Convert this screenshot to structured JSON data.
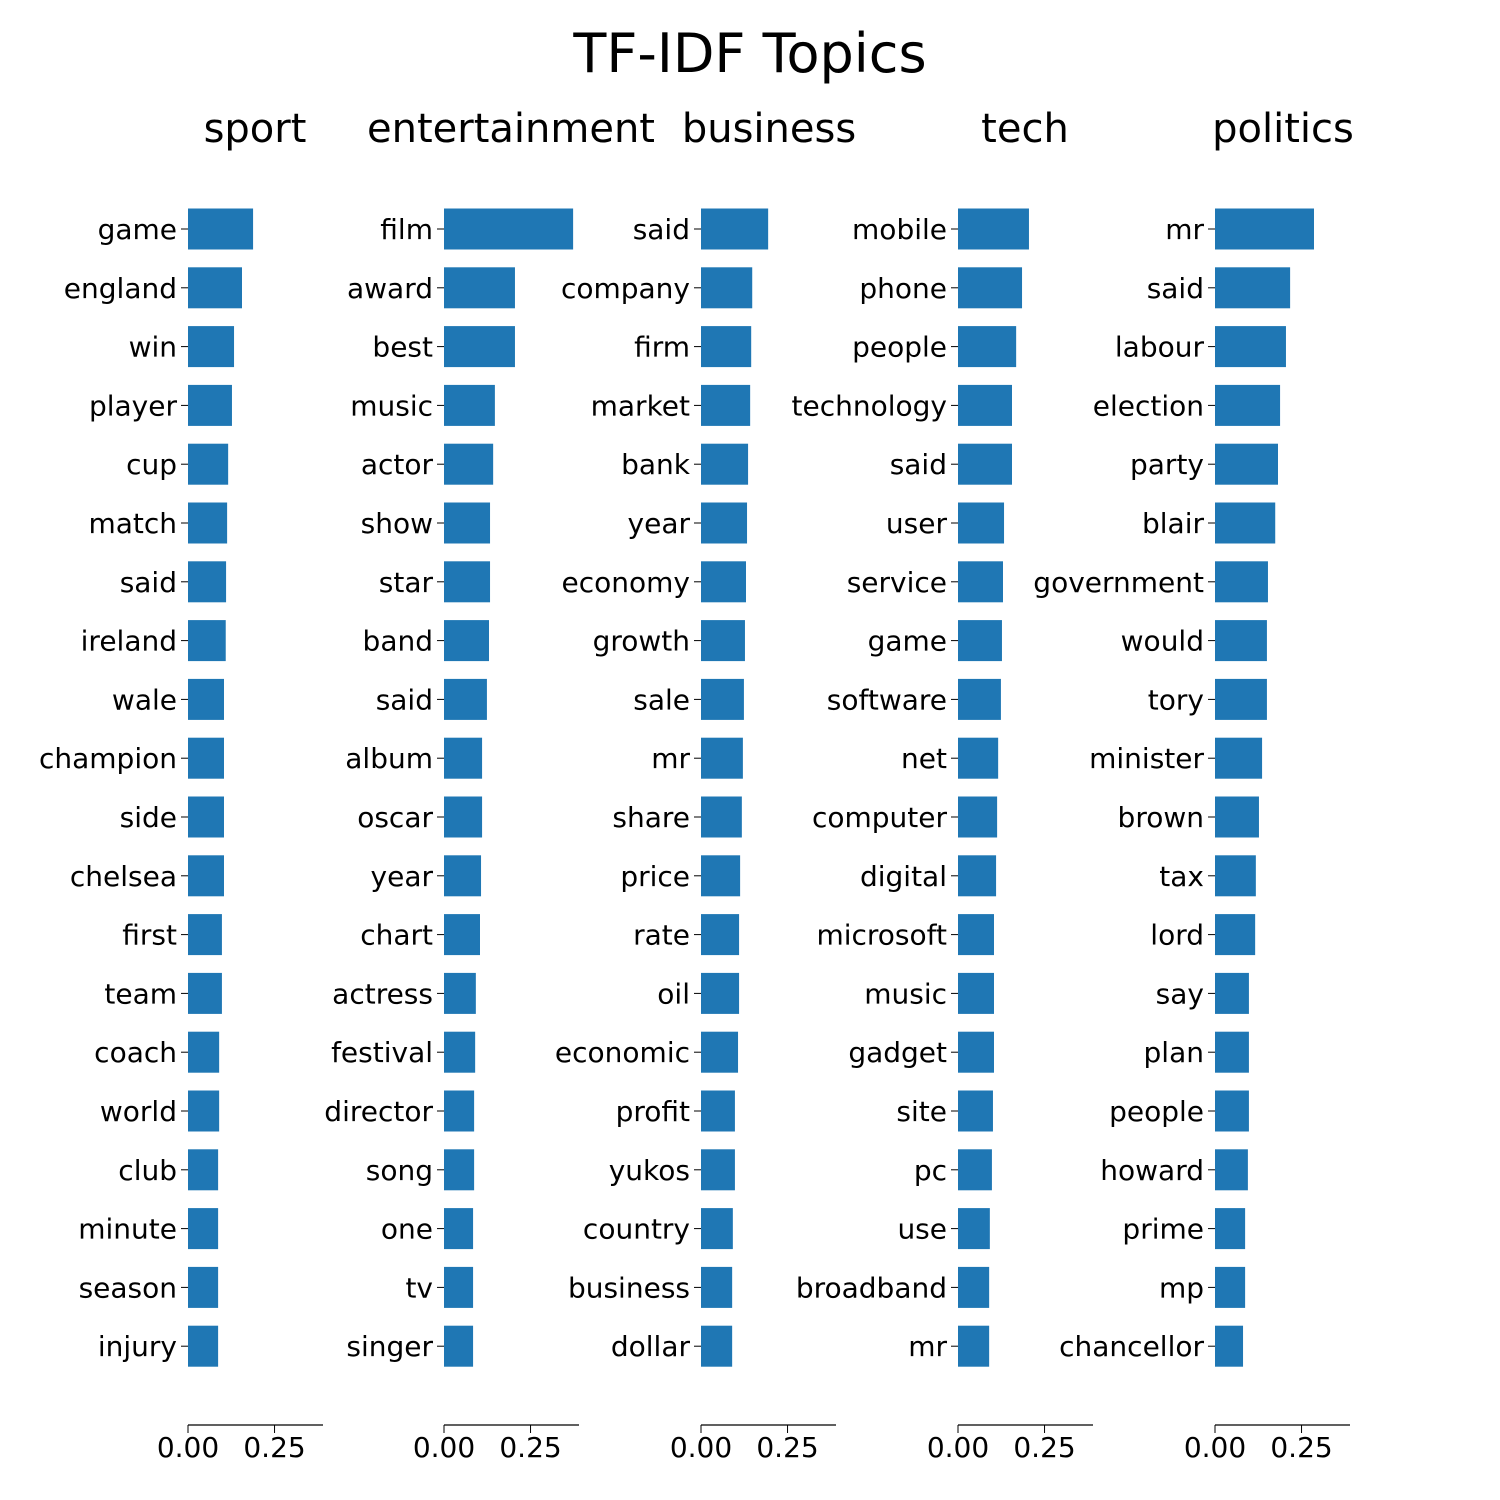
{
  "chart_data": {
    "type": "bar",
    "orientation": "horizontal",
    "title": "TF-IDF Topics",
    "bar_color": "#1f77b4",
    "xlim": [
      0,
      0.39
    ],
    "xticks": [
      0.0,
      0.25
    ],
    "xtick_labels": [
      "0.00",
      "0.25"
    ],
    "grid": false,
    "panels": [
      {
        "title": "sport",
        "categories": [
          "game",
          "england",
          "win",
          "player",
          "cup",
          "match",
          "said",
          "ireland",
          "wale",
          "champion",
          "side",
          "chelsea",
          "first",
          "team",
          "coach",
          "world",
          "club",
          "minute",
          "season",
          "injury"
        ],
        "values": [
          0.188,
          0.156,
          0.133,
          0.127,
          0.116,
          0.113,
          0.11,
          0.109,
          0.104,
          0.104,
          0.104,
          0.104,
          0.098,
          0.098,
          0.09,
          0.09,
          0.087,
          0.087,
          0.087,
          0.087
        ]
      },
      {
        "title": "entertainment",
        "categories": [
          "film",
          "award",
          "best",
          "music",
          "actor",
          "show",
          "star",
          "band",
          "said",
          "album",
          "oscar",
          "year",
          "chart",
          "actress",
          "festival",
          "director",
          "song",
          "one",
          "tv",
          "singer"
        ],
        "values": [
          0.373,
          0.205,
          0.205,
          0.147,
          0.142,
          0.133,
          0.133,
          0.13,
          0.124,
          0.11,
          0.11,
          0.107,
          0.104,
          0.092,
          0.09,
          0.087,
          0.087,
          0.084,
          0.084,
          0.084
        ]
      },
      {
        "title": "business",
        "categories": [
          "said",
          "company",
          "firm",
          "market",
          "bank",
          "year",
          "economy",
          "growth",
          "sale",
          "mr",
          "share",
          "price",
          "rate",
          "oil",
          "economic",
          "profit",
          "yukos",
          "country",
          "business",
          "dollar"
        ],
        "values": [
          0.194,
          0.148,
          0.145,
          0.142,
          0.136,
          0.133,
          0.13,
          0.127,
          0.124,
          0.121,
          0.118,
          0.113,
          0.11,
          0.11,
          0.107,
          0.098,
          0.098,
          0.092,
          0.09,
          0.09
        ]
      },
      {
        "title": "tech",
        "categories": [
          "mobile",
          "phone",
          "people",
          "technology",
          "said",
          "user",
          "service",
          "game",
          "software",
          "net",
          "computer",
          "digital",
          "microsoft",
          "music",
          "gadget",
          "site",
          "pc",
          "use",
          "broadband",
          "mr"
        ],
        "values": [
          0.205,
          0.185,
          0.168,
          0.156,
          0.156,
          0.133,
          0.13,
          0.127,
          0.124,
          0.116,
          0.113,
          0.11,
          0.104,
          0.104,
          0.104,
          0.101,
          0.098,
          0.092,
          0.09,
          0.09
        ]
      },
      {
        "title": "politics",
        "categories": [
          "mr",
          "said",
          "labour",
          "election",
          "party",
          "blair",
          "government",
          "would",
          "tory",
          "minister",
          "brown",
          "tax",
          "lord",
          "say",
          "plan",
          "people",
          "howard",
          "prime",
          "mp",
          "chancellor"
        ],
        "values": [
          0.286,
          0.217,
          0.205,
          0.188,
          0.182,
          0.174,
          0.153,
          0.15,
          0.15,
          0.136,
          0.127,
          0.118,
          0.116,
          0.098,
          0.098,
          0.098,
          0.095,
          0.087,
          0.087,
          0.081
        ]
      }
    ]
  }
}
